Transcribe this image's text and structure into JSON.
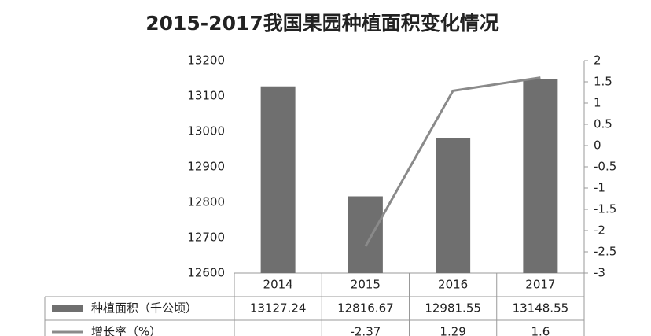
{
  "chart_data": {
    "type": "bar",
    "title": "2015-2017我国果园种植面积变化情况",
    "categories": [
      "2014",
      "2015",
      "2016",
      "2017"
    ],
    "series": [
      {
        "name": "种植面积（千公顷）",
        "type": "bar",
        "color": "#6f6f6f",
        "values": [
          13127.24,
          12816.67,
          12981.55,
          13148.55
        ]
      },
      {
        "name": "增长率（%）",
        "type": "line",
        "axis": "y2",
        "color": "#8a8a8a",
        "values": [
          null,
          -2.37,
          1.29,
          1.6
        ]
      }
    ],
    "ylim": [
      12600,
      13200
    ],
    "yticks": [
      12600,
      12700,
      12800,
      12900,
      13000,
      13100,
      13200
    ],
    "y2lim": [
      -3,
      2
    ],
    "y2ticks": [
      -3,
      -2.5,
      -2,
      -1.5,
      -1,
      -0.5,
      0,
      0.5,
      1,
      1.5,
      2
    ],
    "grid": false
  }
}
